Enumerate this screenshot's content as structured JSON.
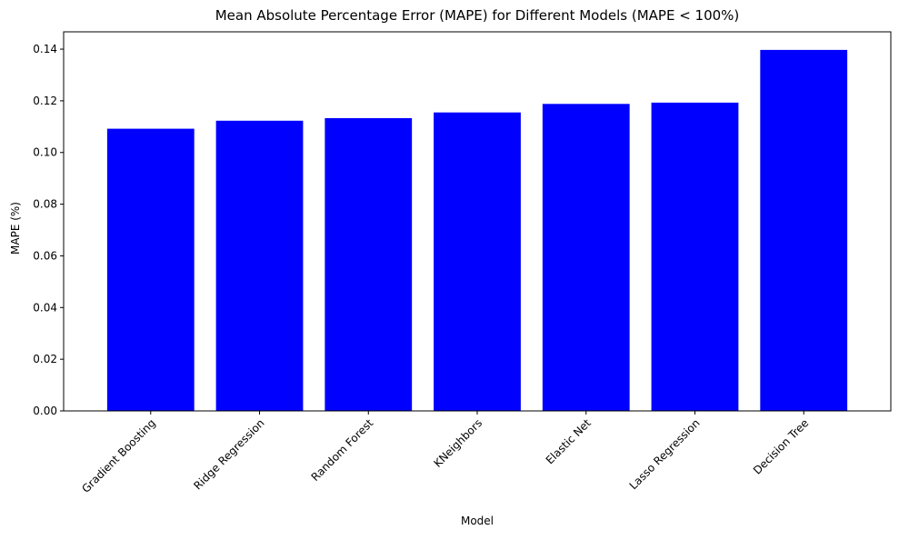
{
  "chart_data": {
    "type": "bar",
    "title": "Mean Absolute Percentage Error (MAPE) for Different Models (MAPE < 100%)",
    "xlabel": "Model",
    "ylabel": "MAPE (%)",
    "categories": [
      "Gradient Boosting",
      "Ridge Regression",
      "Random Forest",
      "KNeighbors",
      "Elastic Net",
      "Lasso Regression",
      "Decision Tree"
    ],
    "values": [
      0.1092,
      0.1123,
      0.1133,
      0.1155,
      0.1188,
      0.1193,
      0.1397
    ],
    "ylim": [
      0,
      0.1467
    ],
    "yticks": [
      "0.00",
      "0.02",
      "0.04",
      "0.06",
      "0.08",
      "0.10",
      "0.12",
      "0.14"
    ],
    "ytick_values": [
      0,
      0.02,
      0.04,
      0.06,
      0.08,
      0.1,
      0.12,
      0.14
    ],
    "xtick_rotation_deg": 45,
    "grid": false,
    "legend": "none",
    "bar_color": "#0000ff"
  }
}
